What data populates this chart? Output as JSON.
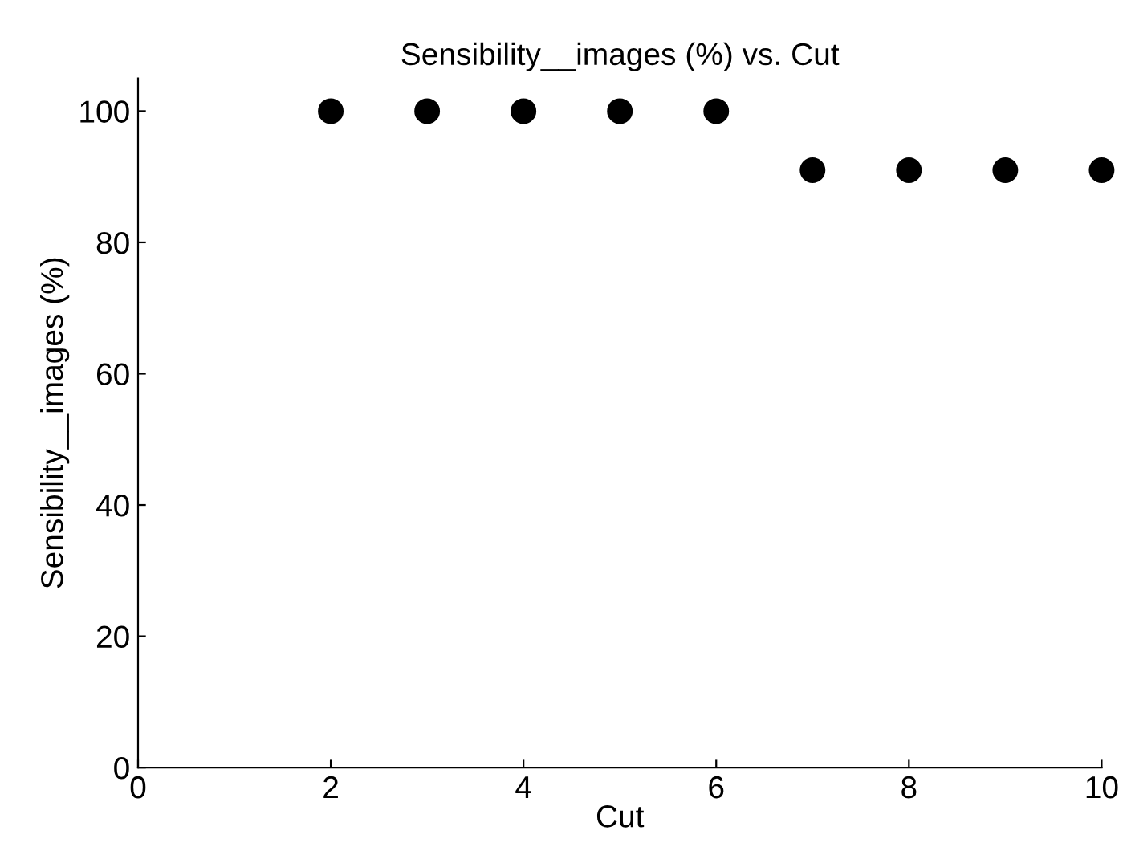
{
  "chart_data": {
    "type": "scatter",
    "title": "Sensibility__images (%) vs. Cut",
    "xlabel": "Cut",
    "ylabel": "Sensibility__images (%)",
    "x": [
      2,
      3,
      4,
      5,
      6,
      7,
      8,
      9,
      10
    ],
    "series": [
      {
        "color": "#000000",
        "values": [
          100,
          100,
          100,
          100,
          100,
          91,
          91,
          91,
          91
        ]
      }
    ],
    "xlim": [
      0,
      10
    ],
    "ylim": [
      0,
      105
    ],
    "xticks": [
      0,
      2,
      4,
      6,
      8,
      10
    ],
    "yticks": [
      0,
      20,
      40,
      60,
      80,
      100
    ],
    "marker": "circle",
    "grid": false,
    "legend": false
  }
}
